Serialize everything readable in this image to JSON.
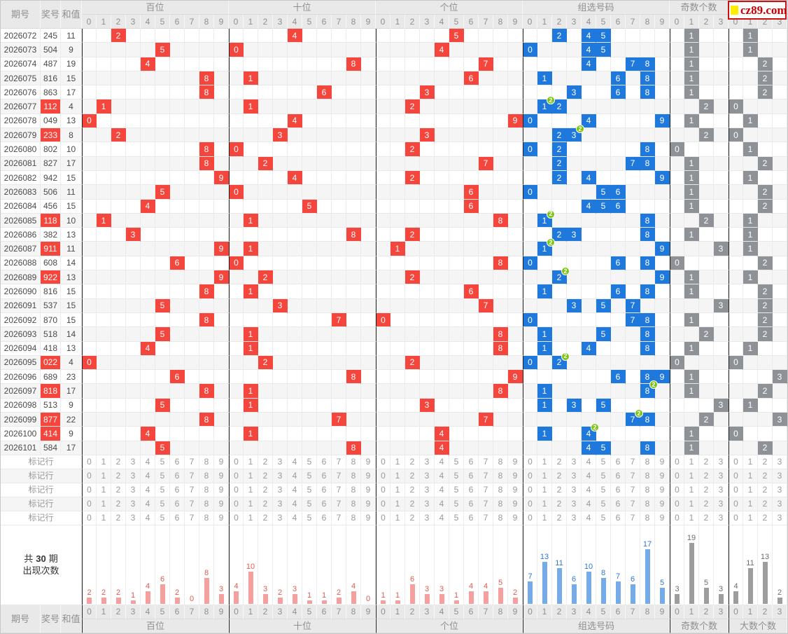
{
  "logo": {
    "text": "cz89.com"
  },
  "header": {
    "period": "期号",
    "number": "奖号",
    "sum": "和值",
    "sections": [
      {
        "id": "hundreds",
        "label": "百位",
        "cols": [
          "0",
          "1",
          "2",
          "3",
          "4",
          "5",
          "6",
          "7",
          "8",
          "9"
        ]
      },
      {
        "id": "tens",
        "label": "十位",
        "cols": [
          "0",
          "1",
          "2",
          "3",
          "4",
          "5",
          "6",
          "7",
          "8",
          "9"
        ]
      },
      {
        "id": "units",
        "label": "个位",
        "cols": [
          "0",
          "1",
          "2",
          "3",
          "4",
          "5",
          "6",
          "7",
          "8",
          "9"
        ]
      },
      {
        "id": "group",
        "label": "组选号码",
        "cols": [
          "0",
          "1",
          "2",
          "3",
          "4",
          "5",
          "6",
          "7",
          "8",
          "9"
        ]
      },
      {
        "id": "odd",
        "label": "奇数个数",
        "cols": [
          "0",
          "1",
          "2",
          "3"
        ]
      },
      {
        "id": "big",
        "label": "大数个数",
        "cols": [
          "0",
          "1",
          "2",
          "3"
        ]
      }
    ]
  },
  "rows": [
    {
      "period": "2026072",
      "number": "245",
      "sum": "11"
    },
    {
      "period": "2026073",
      "number": "504",
      "sum": "9"
    },
    {
      "period": "2026074",
      "number": "487",
      "sum": "19"
    },
    {
      "period": "2026075",
      "number": "816",
      "sum": "15"
    },
    {
      "period": "2026076",
      "number": "863",
      "sum": "17"
    },
    {
      "period": "2026077",
      "number": "112",
      "sum": "4"
    },
    {
      "period": "2026078",
      "number": "049",
      "sum": "13"
    },
    {
      "period": "2026079",
      "number": "233",
      "sum": "8"
    },
    {
      "period": "2026080",
      "number": "802",
      "sum": "10"
    },
    {
      "period": "2026081",
      "number": "827",
      "sum": "17"
    },
    {
      "period": "2026082",
      "number": "942",
      "sum": "15"
    },
    {
      "period": "2026083",
      "number": "506",
      "sum": "11"
    },
    {
      "period": "2026084",
      "number": "456",
      "sum": "15"
    },
    {
      "period": "2026085",
      "number": "118",
      "sum": "10"
    },
    {
      "period": "2026086",
      "number": "382",
      "sum": "13"
    },
    {
      "period": "2026087",
      "number": "911",
      "sum": "11"
    },
    {
      "period": "2026088",
      "number": "608",
      "sum": "14"
    },
    {
      "period": "2026089",
      "number": "922",
      "sum": "13"
    },
    {
      "period": "2026090",
      "number": "816",
      "sum": "15"
    },
    {
      "period": "2026091",
      "number": "537",
      "sum": "15"
    },
    {
      "period": "2026092",
      "number": "870",
      "sum": "15"
    },
    {
      "period": "2026093",
      "number": "518",
      "sum": "14"
    },
    {
      "period": "2026094",
      "number": "418",
      "sum": "13"
    },
    {
      "period": "2026095",
      "number": "022",
      "sum": "4"
    },
    {
      "period": "2026096",
      "number": "689",
      "sum": "23"
    },
    {
      "period": "2026097",
      "number": "818",
      "sum": "17"
    },
    {
      "period": "2026098",
      "number": "513",
      "sum": "9"
    },
    {
      "period": "2026099",
      "number": "877",
      "sum": "22"
    },
    {
      "period": "2026100",
      "number": "414",
      "sum": "9"
    },
    {
      "period": "2026101",
      "number": "584",
      "sum": "17"
    }
  ],
  "marker": {
    "label": "标记行",
    "count": 5
  },
  "stats": {
    "label_prefix": "共",
    "total": "30",
    "label_suffix": "期",
    "label_line2": "出现次数"
  },
  "chart_data": [
    {
      "type": "bar",
      "title": "百位出现次数(共30期)",
      "categories": [
        "0",
        "1",
        "2",
        "3",
        "4",
        "5",
        "6",
        "7",
        "8",
        "9"
      ],
      "values": [
        2,
        2,
        2,
        1,
        4,
        6,
        2,
        0,
        8,
        3
      ],
      "bar_color": "#f59f9f",
      "label_color": "#dd5b52"
    },
    {
      "type": "bar",
      "title": "十位出现次数(共30期)",
      "categories": [
        "0",
        "1",
        "2",
        "3",
        "4",
        "5",
        "6",
        "7",
        "8",
        "9"
      ],
      "values": [
        4,
        10,
        3,
        2,
        3,
        1,
        1,
        2,
        4,
        0
      ],
      "bar_color": "#f59f9f",
      "label_color": "#dd5b52"
    },
    {
      "type": "bar",
      "title": "个位出现次数(共30期)",
      "categories": [
        "0",
        "1",
        "2",
        "3",
        "4",
        "5",
        "6",
        "7",
        "8",
        "9"
      ],
      "values": [
        1,
        1,
        6,
        3,
        3,
        1,
        4,
        4,
        5,
        2
      ],
      "bar_color": "#f59f9f",
      "label_color": "#dd5b52"
    },
    {
      "type": "bar",
      "title": "组选号码出现次数(共30期)",
      "categories": [
        "0",
        "1",
        "2",
        "3",
        "4",
        "5",
        "6",
        "7",
        "8",
        "9"
      ],
      "values": [
        7,
        13,
        11,
        6,
        10,
        8,
        7,
        6,
        17,
        5
      ],
      "bar_color": "#74abe8",
      "label_color": "#3077cd"
    },
    {
      "type": "bar",
      "title": "奇数个数出现次数(共30期)",
      "categories": [
        "0",
        "1",
        "2",
        "3"
      ],
      "values": [
        3,
        19,
        5,
        3
      ],
      "bar_color": "#9d9d9d",
      "label_color": "#6d6d6d"
    },
    {
      "type": "bar",
      "title": "大数个数出现次数(共30期)",
      "categories": [
        "0",
        "1",
        "2",
        "3"
      ],
      "values": [
        4,
        11,
        13,
        2
      ],
      "bar_color": "#9d9d9d",
      "label_color": "#6d6d6d"
    }
  ],
  "colors": {
    "hot_red": "#f4463d",
    "group_blue": "#1f79dc",
    "count_gray": "#8e9296",
    "repeat_badge_green": "#7dc511",
    "header_bg": "#e9e9e9",
    "logo_red": "#cc0000",
    "logo_yellow": "#ffee00"
  }
}
